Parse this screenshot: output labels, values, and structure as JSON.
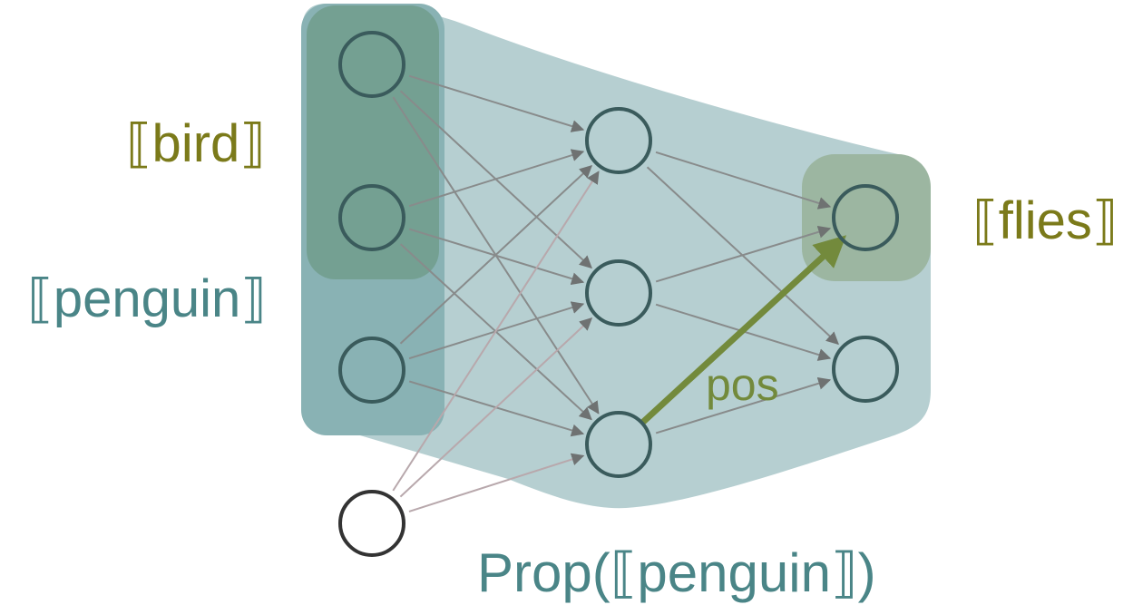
{
  "labels": {
    "bird": "⟦bird⟧",
    "penguin": "⟦penguin⟧",
    "flies": "⟦flies⟧",
    "prop": "Prop(⟦penguin⟧)",
    "pos": "pos"
  },
  "colors": {
    "olive_text": "#7b7a1a",
    "teal_text": "#4a8587",
    "pos_green": "#738a3c",
    "hull_fill": "#b6cfd1",
    "penguin_group_fill": "#89b2b4",
    "bird_group_fill": "#74a092",
    "flies_group_fill": "#9cb6a1",
    "node_stroke": "#3a5b5c",
    "bias_node_stroke": "#333333",
    "edge_gray": "#888b8b",
    "edge_bias": "#b8a8ac"
  },
  "network": {
    "layers": [
      {
        "name": "input",
        "node_count": 3
      },
      {
        "name": "hidden",
        "node_count": 3
      },
      {
        "name": "output",
        "node_count": 2
      }
    ],
    "bias_node": true,
    "highlighted_edge": {
      "from": "hidden-3",
      "to": "output-1",
      "label_key": "pos"
    }
  }
}
